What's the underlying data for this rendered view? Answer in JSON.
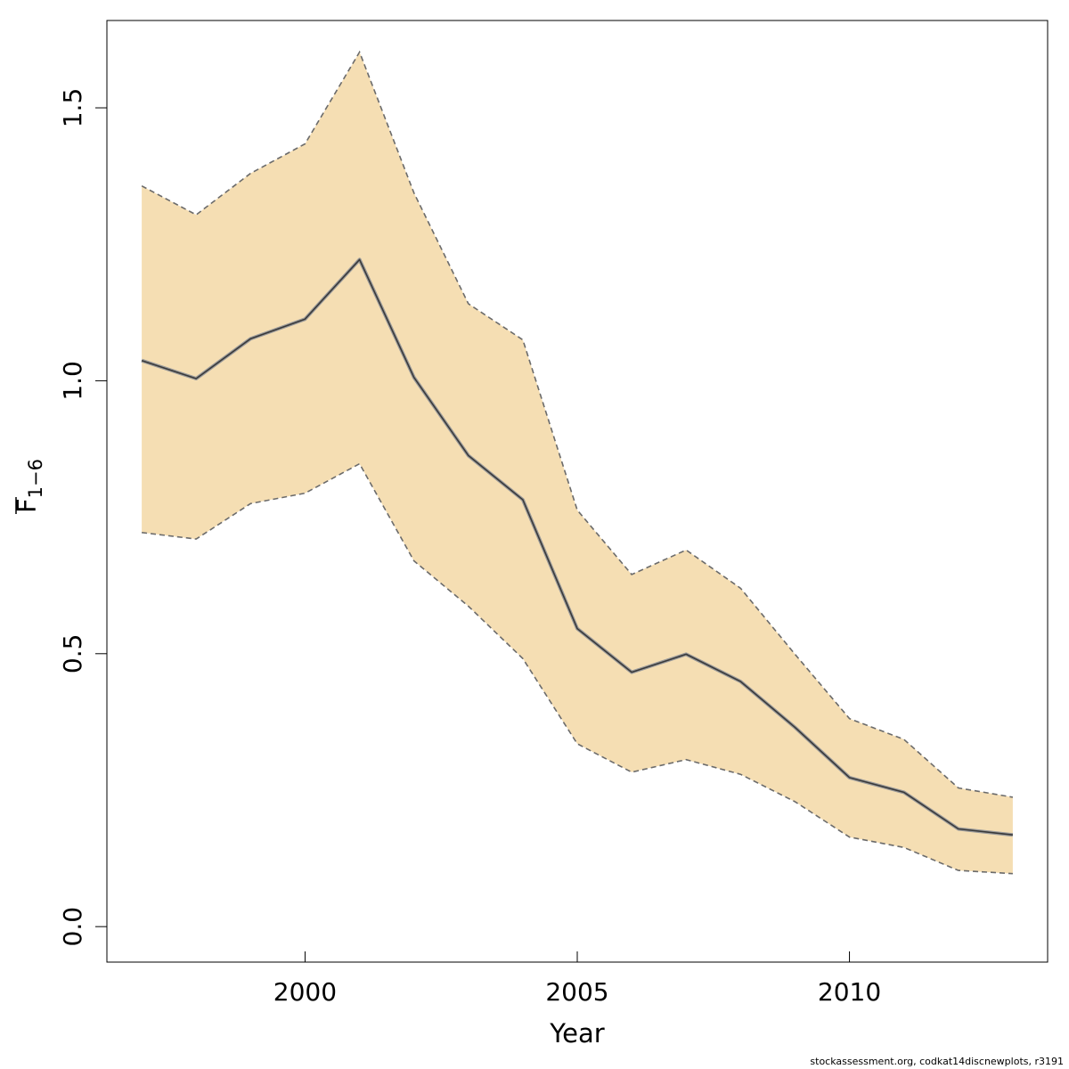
{
  "chart_data": {
    "type": "area",
    "xlabel": "Year",
    "ylabel": "F",
    "ylabel_subscript": "1−6",
    "xlim": [
      1996.36,
      2013.64
    ],
    "ylim": [
      -0.065,
      1.66
    ],
    "xticks": [
      2000,
      2005,
      2010
    ],
    "xtick_labels": [
      "2000",
      "2005",
      "2010"
    ],
    "yticks": [
      0.0,
      0.5,
      1.0,
      1.5
    ],
    "ytick_labels": [
      "0.0",
      "0.5",
      "1.0",
      "1.5"
    ],
    "grid": false,
    "x": [
      1997,
      1998,
      1999,
      2000,
      2001,
      2002,
      2003,
      2004,
      2005,
      2006,
      2007,
      2008,
      2009,
      2010,
      2011,
      2012,
      2013
    ],
    "series": [
      {
        "role": "estimate",
        "values": [
          1.037,
          1.004,
          1.077,
          1.113,
          1.222,
          1.006,
          0.863,
          0.782,
          0.546,
          0.466,
          0.499,
          0.449,
          0.365,
          0.273,
          0.246,
          0.179,
          0.168
        ]
      },
      {
        "role": "upper",
        "values": [
          1.357,
          1.304,
          1.38,
          1.434,
          1.602,
          1.344,
          1.141,
          1.075,
          0.763,
          0.645,
          0.69,
          0.62,
          0.499,
          0.381,
          0.343,
          0.254,
          0.237
        ]
      },
      {
        "role": "lower",
        "values": [
          0.722,
          0.71,
          0.775,
          0.794,
          0.848,
          0.67,
          0.587,
          0.491,
          0.335,
          0.283,
          0.306,
          0.279,
          0.229,
          0.164,
          0.145,
          0.103,
          0.097
        ]
      }
    ],
    "colors": {
      "band": "#f5deb3",
      "band_edge": "#6b6b6b",
      "line": "#3a3a3a",
      "line_halo": "#9a9a9a"
    }
  },
  "footer": "stockassessment.org, codkat14discnewplots, r3191"
}
